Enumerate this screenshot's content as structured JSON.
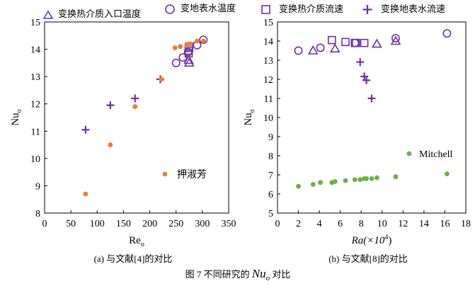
{
  "legend": {
    "items": [
      {
        "label": "变换热介质入口温度",
        "marker": "triangle"
      },
      {
        "label": "变地表水温度",
        "marker": "circle"
      },
      {
        "label": "变换热介质流速",
        "marker": "square"
      },
      {
        "label": "变换地表水流速",
        "marker": "plus"
      }
    ]
  },
  "colors": {
    "purple": "#7030a0",
    "orange": "#ed7d31",
    "green": "#70ad47"
  },
  "caption": {
    "a": "(a)  与文献[4]的对比",
    "b": "(b)  与文献[8]的对比",
    "figure_prefix": "图 7  不同研究的 ",
    "figure_symbol": "Nu",
    "figure_sub": "o",
    "figure_suffix": " 对比"
  },
  "chart_data": [
    {
      "type": "scatter",
      "panel": "a",
      "xlabel": "Re",
      "xlabel_sub": "o",
      "ylabel": "Nu",
      "ylabel_sub": "o",
      "xlim": [
        0,
        350
      ],
      "ylim": [
        8,
        15
      ],
      "xticks": [
        0,
        50,
        100,
        150,
        200,
        250,
        300,
        350
      ],
      "yticks": [
        8,
        9,
        10,
        11,
        12,
        13,
        14,
        15
      ],
      "annotation": "押淑芳",
      "series": [
        {
          "name": "变换热介质入口温度",
          "marker": "triangle",
          "color": "purple",
          "x": [
            274,
            275
          ],
          "y": [
            13.6,
            13.5
          ]
        },
        {
          "name": "变地表水温度",
          "marker": "circle",
          "color": "purple",
          "x": [
            250,
            263,
            273,
            290,
            302
          ],
          "y": [
            13.5,
            13.7,
            13.9,
            14.15,
            14.35
          ]
        },
        {
          "name": "变换热介质流速",
          "marker": "square",
          "color": "purple",
          "x": [
            274,
            274,
            275,
            275
          ],
          "y": [
            13.85,
            13.95,
            14.05,
            14.1
          ]
        },
        {
          "name": "变换地表水流速",
          "marker": "plus",
          "color": "purple",
          "x": [
            78,
            125,
            172,
            220
          ],
          "y": [
            11.05,
            11.95,
            12.2,
            12.9
          ]
        },
        {
          "name": "押淑芳",
          "marker": "dot",
          "color": "orange",
          "x": [
            78,
            125,
            172,
            222,
            248,
            258,
            270,
            277,
            290,
            302
          ],
          "y": [
            8.7,
            10.5,
            11.9,
            12.9,
            14.05,
            14.1,
            14.15,
            14.2,
            14.3,
            14.3
          ]
        }
      ]
    },
    {
      "type": "scatter",
      "panel": "b",
      "xlabel": "Ra(×10",
      "xlabel_sup": "4",
      "xlabel_tail": ")",
      "ylabel": "Nu",
      "ylabel_sub": "o",
      "xlim": [
        0,
        18
      ],
      "ylim": [
        5,
        15
      ],
      "xticks": [
        0,
        2,
        4,
        6,
        8,
        10,
        12,
        14,
        16,
        18
      ],
      "yticks": [
        5,
        6,
        7,
        8,
        9,
        10,
        11,
        12,
        13,
        14,
        15
      ],
      "annotation": "Mitchell",
      "series": [
        {
          "name": "变换热介质入口温度",
          "marker": "triangle",
          "color": "purple",
          "x": [
            3.4,
            5.5,
            9.5,
            11.3
          ],
          "y": [
            13.5,
            13.6,
            13.85,
            14.0
          ]
        },
        {
          "name": "变地表水温度",
          "marker": "circle",
          "color": "purple",
          "x": [
            2.0,
            4.1,
            7.4,
            11.3,
            16.2
          ],
          "y": [
            13.5,
            13.65,
            13.9,
            14.15,
            14.4
          ]
        },
        {
          "name": "变换热介质流速",
          "marker": "square",
          "color": "purple",
          "x": [
            5.2,
            6.5,
            7.4,
            7.5,
            8.3
          ],
          "y": [
            14.05,
            13.95,
            13.9,
            13.9,
            13.9
          ]
        },
        {
          "name": "变换地表水流速",
          "marker": "plus",
          "color": "purple",
          "x": [
            7.9,
            8.3,
            8.5,
            9.0
          ],
          "y": [
            12.9,
            12.15,
            11.95,
            11.0
          ]
        },
        {
          "name": "Mitchell",
          "marker": "dot",
          "color": "green",
          "x": [
            2.0,
            3.4,
            4.1,
            5.2,
            5.5,
            6.5,
            7.4,
            7.9,
            8.3,
            8.5,
            9.0,
            9.5,
            11.3,
            16.2
          ],
          "y": [
            6.4,
            6.5,
            6.6,
            6.6,
            6.65,
            6.7,
            6.75,
            6.75,
            6.8,
            6.8,
            6.8,
            6.85,
            6.9,
            7.05
          ]
        }
      ]
    }
  ]
}
